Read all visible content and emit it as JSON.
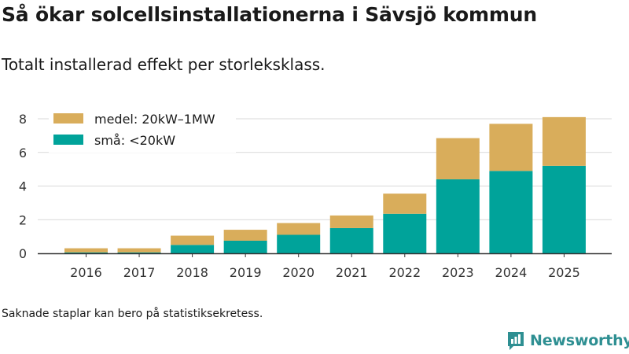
{
  "header": {
    "title": "Så ökar solcellsinstallationerna i Sävsjö kommun",
    "subtitle": "Totalt installerad effekt per storleksklass."
  },
  "footer": {
    "note": "Saknade staplar kan bero på statistiksekretess.",
    "brand": "Newsworthy"
  },
  "colors": {
    "medel": "#d9ad5b",
    "sma": "#00a39a",
    "grid": "#d9d9d9",
    "axis": "#333333",
    "brand": "#2e8f92"
  },
  "chart_data": {
    "type": "bar",
    "stacked": true,
    "title": "Så ökar solcellsinstallationerna i Sävsjö kommun",
    "subtitle": "Totalt installerad effekt per storleksklass.",
    "xlabel": "",
    "ylabel": "",
    "ylim": [
      0,
      8
    ],
    "yticks": [
      0,
      2,
      4,
      6,
      8
    ],
    "grid": true,
    "legend_position": "top-left",
    "categories": [
      "2016",
      "2017",
      "2018",
      "2019",
      "2020",
      "2021",
      "2022",
      "2023",
      "2024",
      "2025"
    ],
    "series": [
      {
        "name": "små: <20kW",
        "color": "#00a39a",
        "values": [
          0.05,
          0.05,
          0.5,
          0.75,
          1.1,
          1.5,
          2.35,
          4.4,
          4.9,
          5.2
        ]
      },
      {
        "name": "medel: 20kW–1MW",
        "color": "#d9ad5b",
        "values": [
          0.25,
          0.25,
          0.55,
          0.65,
          0.7,
          0.75,
          1.2,
          2.45,
          2.8,
          2.9
        ]
      }
    ],
    "legend": [
      "medel: 20kW–1MW",
      "små: <20kW"
    ]
  }
}
